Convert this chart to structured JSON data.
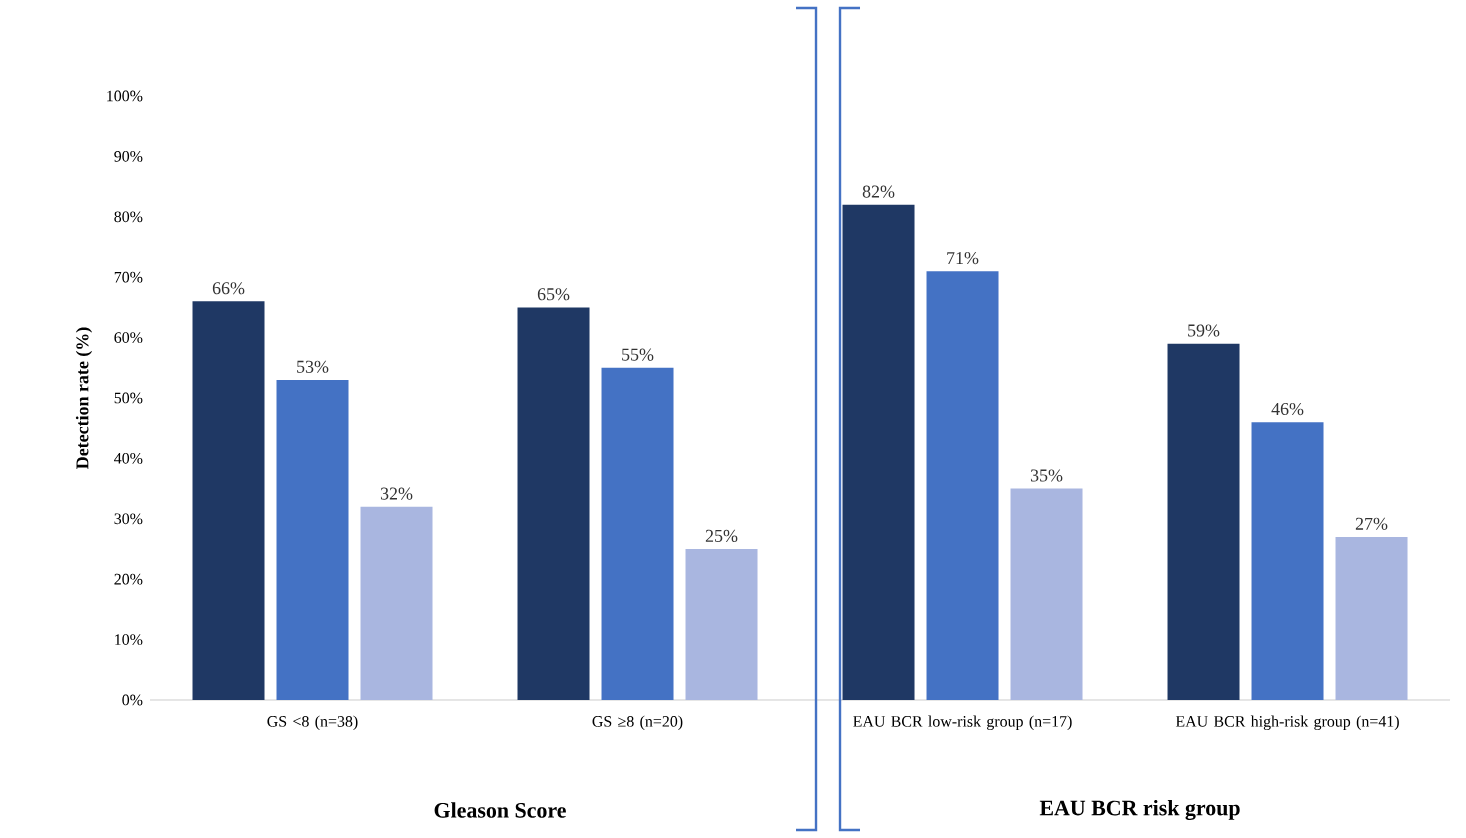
{
  "chart_data": {
    "type": "bar",
    "ylabel": "Detection rate (%)",
    "categories": [
      "GS <8 (n=38)",
      "GS ≥8 (n=20)",
      "EAU BCR low-risk group (n=17)",
      "EAU BCR high-risk group (n=41)"
    ],
    "series": [
      {
        "color": "#1f3864",
        "values": [
          66,
          65,
          82,
          59
        ],
        "value_labels": [
          "66%",
          "65%",
          "82%",
          "59%"
        ]
      },
      {
        "color": "#4472c4",
        "values": [
          53,
          55,
          71,
          46
        ],
        "value_labels": [
          "53%",
          "55%",
          "71%",
          "46%"
        ]
      },
      {
        "color": "#a9b6e0",
        "values": [
          32,
          25,
          35,
          27
        ],
        "value_labels": [
          "32%",
          "25%",
          "35%",
          "27%"
        ]
      }
    ],
    "ylim": [
      0,
      100
    ],
    "yticks": [
      {
        "value": 0,
        "label": "0%"
      },
      {
        "value": 10,
        "label": "10%"
      },
      {
        "value": 20,
        "label": "20%"
      },
      {
        "value": 30,
        "label": "30%"
      },
      {
        "value": 40,
        "label": "40%"
      },
      {
        "value": 50,
        "label": "50%"
      },
      {
        "value": 60,
        "label": "60%"
      },
      {
        "value": 70,
        "label": "70%"
      },
      {
        "value": 80,
        "label": "80%"
      },
      {
        "value": 90,
        "label": "90%"
      },
      {
        "value": 100,
        "label": "100%"
      }
    ],
    "annotations": [
      "Gleason Score",
      "EAU BCR risk group"
    ]
  }
}
